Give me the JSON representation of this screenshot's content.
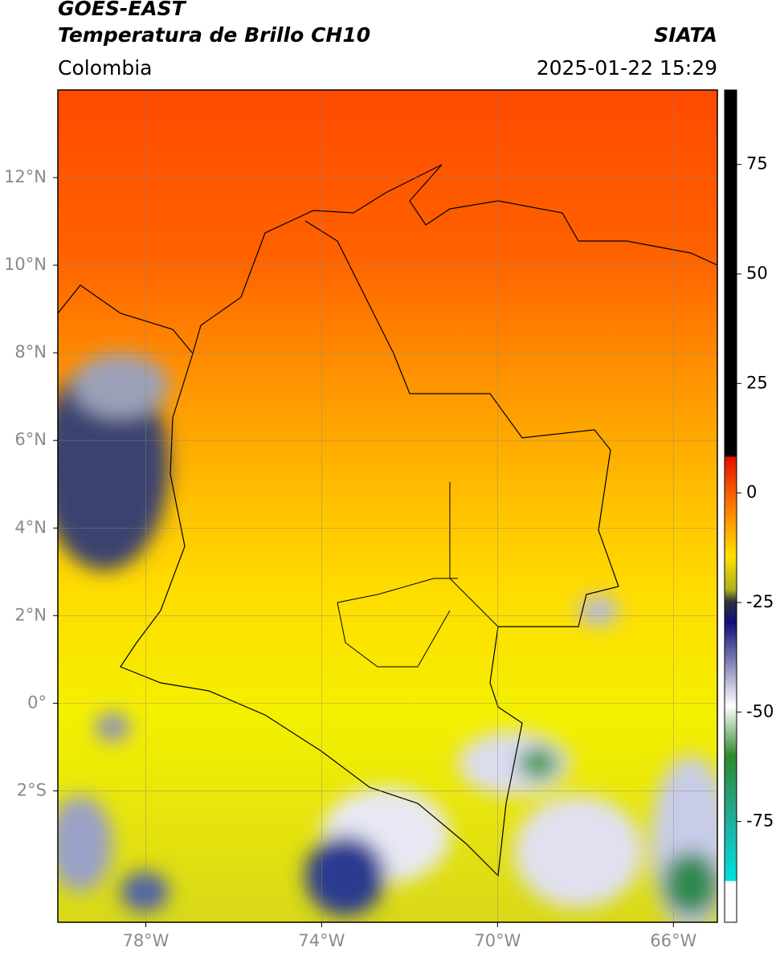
{
  "header": {
    "title": "GOES-EAST",
    "subtitle": "Temperatura de Brillo CH10",
    "region": "Colombia",
    "source": "SIATA",
    "timestamp": "2025-01-22 15:29"
  },
  "map": {
    "lon_range": [
      -80,
      -65
    ],
    "lat_range": [
      -5,
      14
    ],
    "lon_ticks": [
      {
        "value": -78,
        "label": "78°W"
      },
      {
        "value": -74,
        "label": "74°W"
      },
      {
        "value": -70,
        "label": "70°W"
      },
      {
        "value": -66,
        "label": "66°W"
      }
    ],
    "lat_ticks": [
      {
        "value": 12,
        "label": "12°N"
      },
      {
        "value": 10,
        "label": "10°N"
      },
      {
        "value": 8,
        "label": "8°N"
      },
      {
        "value": 6,
        "label": "6°N"
      },
      {
        "value": 4,
        "label": "4°N"
      },
      {
        "value": 2,
        "label": "2°N"
      },
      {
        "value": 0,
        "label": "0°"
      },
      {
        "value": -2,
        "label": "2°S"
      }
    ]
  },
  "colorbar": {
    "lim": [
      -98,
      92
    ],
    "ticks": [
      75,
      50,
      25,
      0,
      -25,
      -50,
      -75
    ]
  }
}
